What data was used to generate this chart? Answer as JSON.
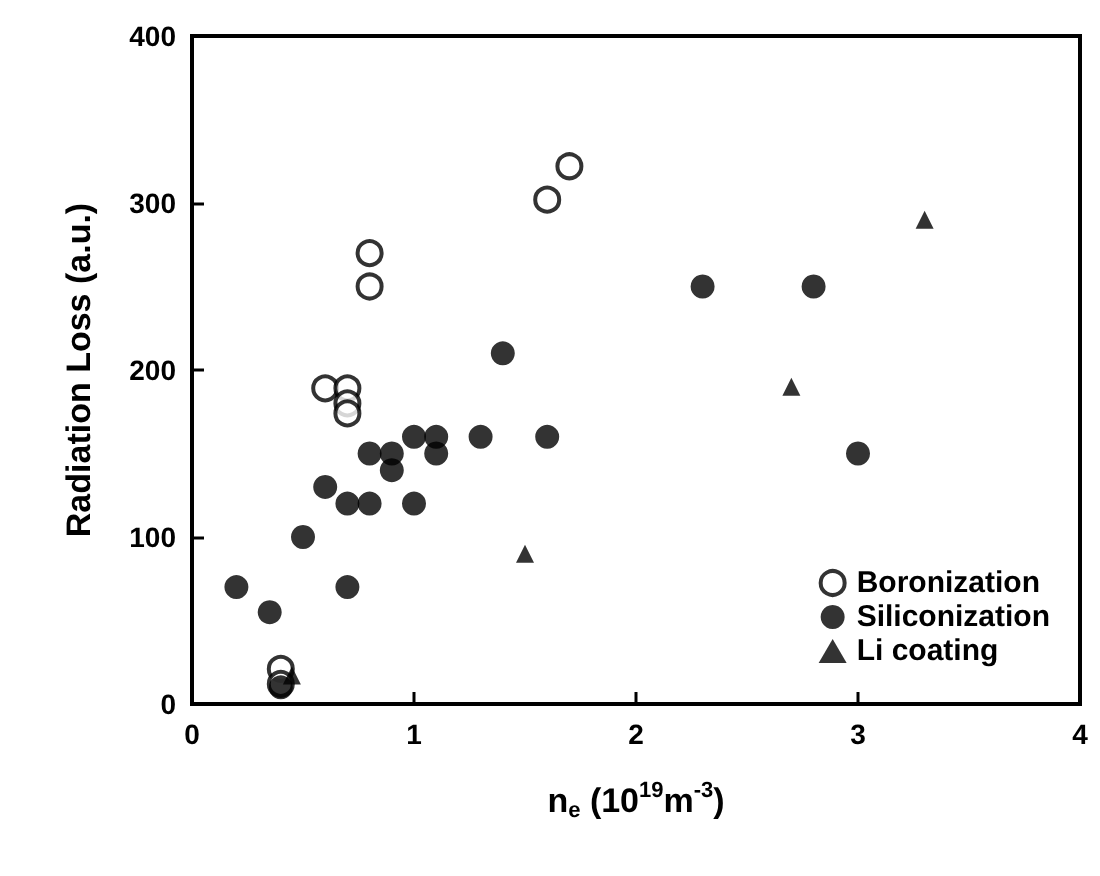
{
  "chart_data": {
    "type": "scatter",
    "xlabel": "n$_{e}$ (10$^{19}$m$^{-3}$)",
    "ylabel": "Radiation Loss (a.u.)",
    "xlim": [
      0,
      4
    ],
    "xticks": [
      0,
      1,
      2,
      3,
      4
    ],
    "ylim": [
      0,
      400
    ],
    "yticks": [
      0,
      100,
      200,
      300,
      400
    ],
    "grid": false,
    "legend": "bottom right",
    "series": [
      {
        "name": "Boronization",
        "color": "#000000",
        "marker": "circle-open",
        "x": [
          0.4,
          0.4,
          0.6,
          0.7,
          0.7,
          0.7,
          0.8,
          0.8,
          1.6,
          1.7
        ],
        "values": [
          21,
          12,
          189,
          189,
          180,
          174,
          270,
          250,
          302,
          322
        ]
      },
      {
        "name": "Siliconization",
        "color": "#000000",
        "marker": "circle",
        "x": [
          0.2,
          0.35,
          0.4,
          0.5,
          0.6,
          0.7,
          0.7,
          0.8,
          0.8,
          0.9,
          0.9,
          1.0,
          1.0,
          1.1,
          1.1,
          1.3,
          1.4,
          1.6,
          2.3,
          2.8,
          3.0
        ],
        "values": [
          70,
          55,
          10,
          100,
          130,
          120,
          70,
          150,
          120,
          150,
          140,
          160,
          120,
          160,
          150,
          160,
          210,
          160,
          250,
          250,
          150
        ]
      },
      {
        "name": "Li coating",
        "color": "#000000",
        "marker": "triangle",
        "x": [
          0.45,
          1.5,
          2.7,
          3.3
        ],
        "values": [
          17,
          90,
          190,
          290
        ]
      }
    ]
  }
}
